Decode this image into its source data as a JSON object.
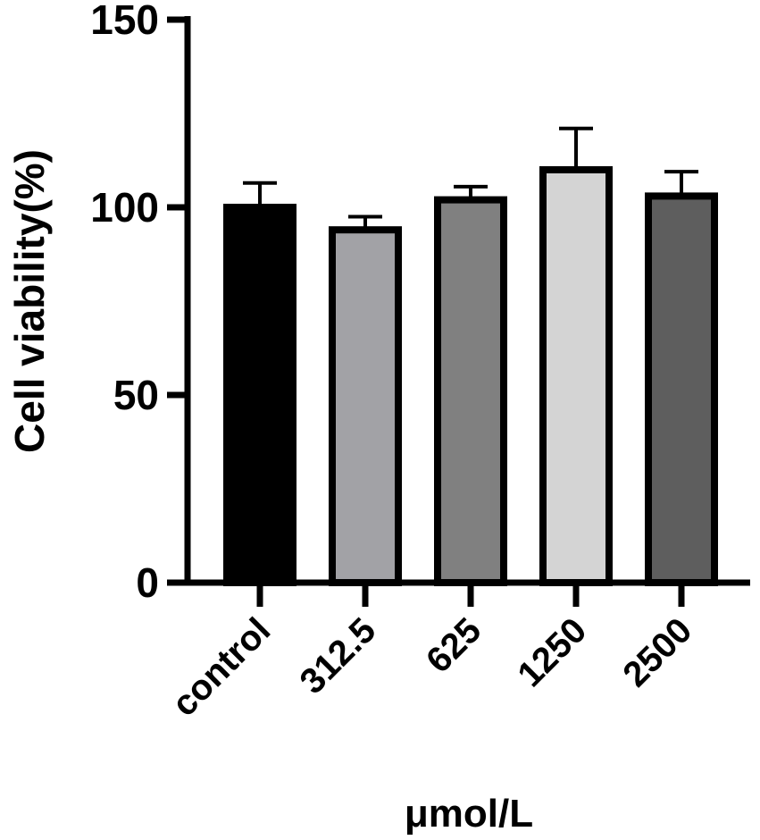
{
  "chart_data": {
    "type": "bar",
    "title": "",
    "xlabel": "μmol/L",
    "ylabel": "Cell viability(%)",
    "ylim": [
      0,
      150
    ],
    "yticks": [
      0,
      50,
      100,
      150
    ],
    "categories": [
      "control",
      "312.5",
      "625",
      "1250",
      "2500"
    ],
    "values": [
      100,
      94,
      102,
      110,
      103
    ],
    "errors": [
      6.5,
      3.5,
      3.5,
      11,
      6.5
    ],
    "colors": [
      "#000000",
      "#a2a2a6",
      "#808080",
      "#d4d4d4",
      "#5e5e5e"
    ],
    "grid": false,
    "legend": "none"
  }
}
